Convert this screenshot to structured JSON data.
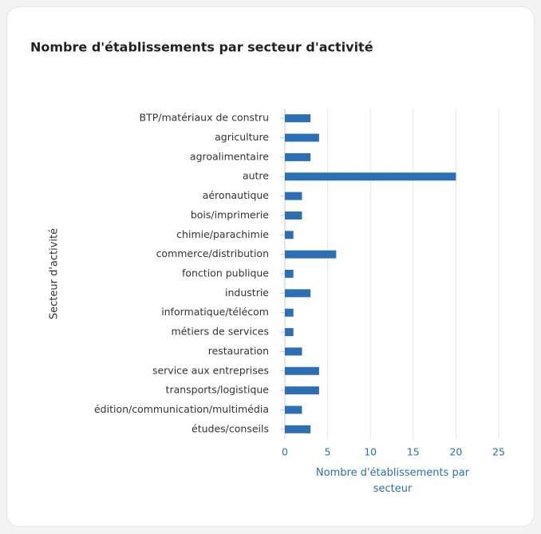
{
  "chart_data": {
    "type": "bar",
    "orientation": "horizontal",
    "title": "Nombre d'établissements par secteur d'activité",
    "x_label": "Nombre d'établissements par secteur",
    "y_label": "Secteur d'activité",
    "categories": [
      "BTP/matériaux de constru",
      "agriculture",
      "agroalimentaire",
      "autre",
      "aéronautique",
      "bois/imprimerie",
      "chimie/parachimie",
      "commerce/distribution",
      "fonction publique",
      "industrie",
      "informatique/télécom",
      "métiers de services",
      "restauration",
      "service aux entreprises",
      "transports/logistique",
      "édition/communication/multimédia",
      "études/conseils"
    ],
    "values": [
      3,
      4,
      3,
      20,
      2,
      2,
      1,
      6,
      1,
      3,
      1,
      1,
      2,
      4,
      4,
      2,
      3
    ],
    "color": "#2b70b7",
    "xlim": [
      0,
      25
    ],
    "xticks": [
      0,
      5,
      10,
      15,
      20,
      25
    ],
    "grid": true
  }
}
